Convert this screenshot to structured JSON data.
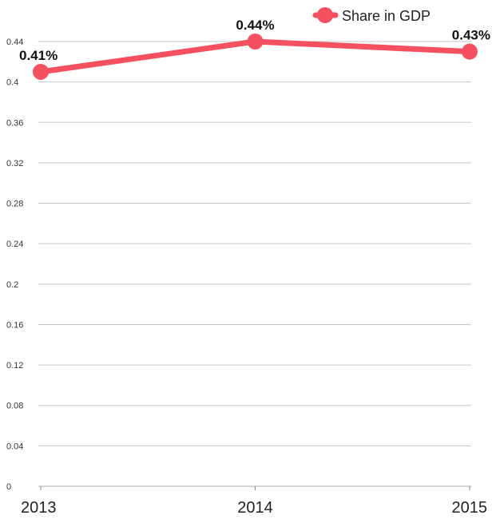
{
  "chart_data": {
    "type": "line",
    "categories": [
      "2013",
      "2014",
      "2015"
    ],
    "series": [
      {
        "name": "Share in GDP",
        "values": [
          0.41,
          0.44,
          0.43
        ],
        "labels": [
          "0.41%",
          "0.44%",
          "0.43%"
        ],
        "color": "#f5505f"
      }
    ],
    "ylim": [
      0,
      0.44
    ],
    "yticks": [
      "0",
      "0.04",
      "0.08",
      "0.12",
      "0.16",
      "0.2",
      "0.24",
      "0.28",
      "0.32",
      "0.36",
      "0.4",
      "0.44"
    ],
    "grid": true,
    "legend_position": "top-right",
    "title": "",
    "xlabel": "",
    "ylabel": ""
  }
}
